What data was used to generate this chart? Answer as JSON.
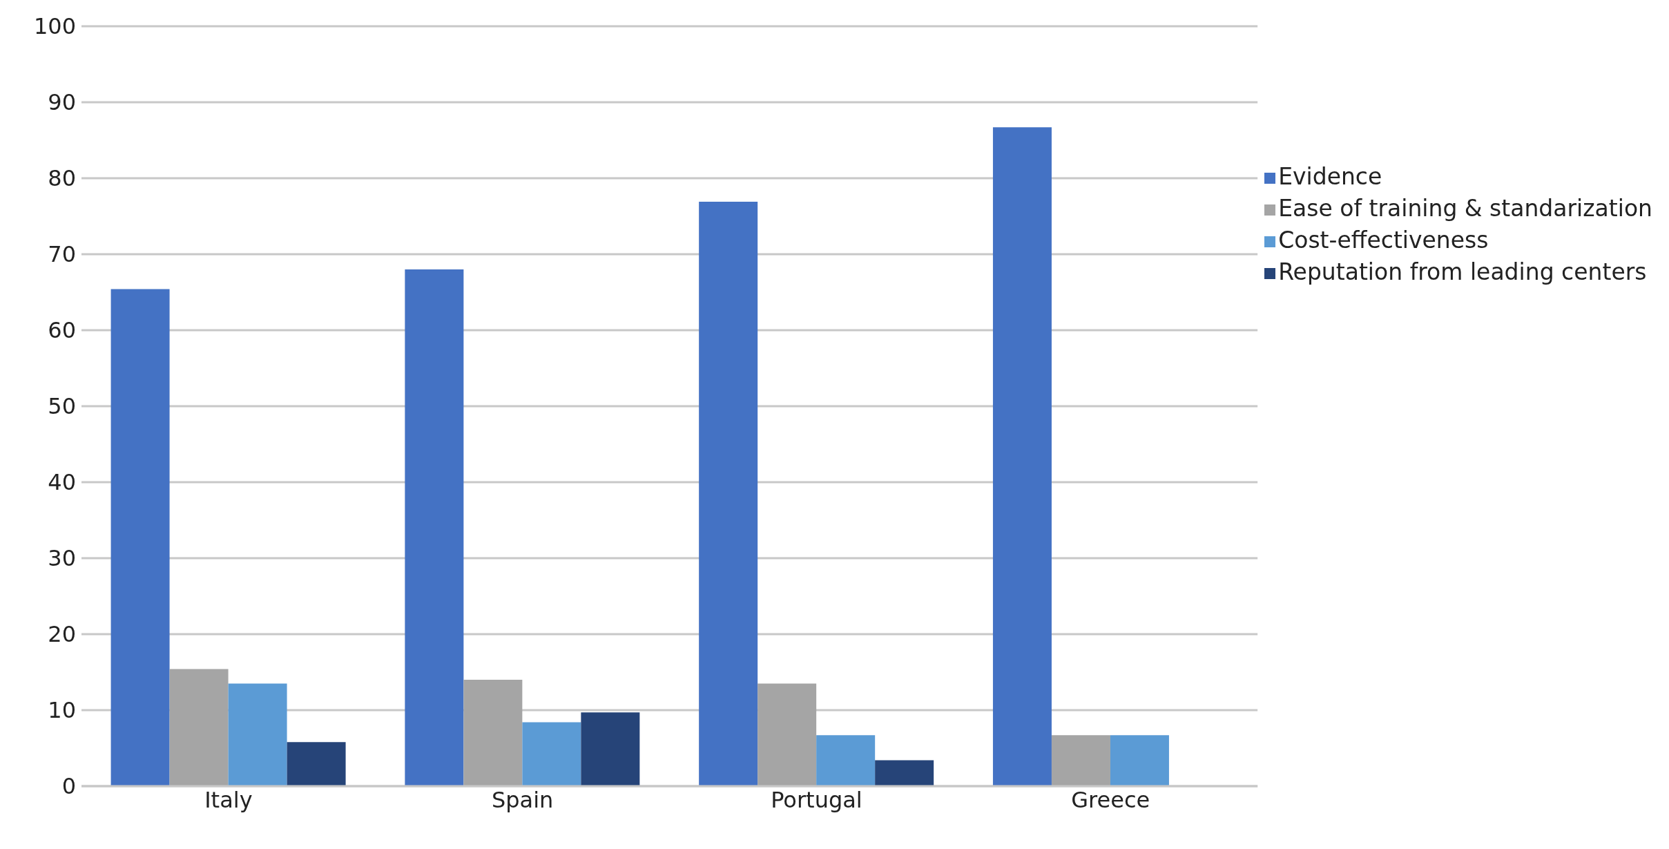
{
  "chart_data": {
    "type": "bar",
    "categories": [
      "Italy",
      "Spain",
      "Portugal",
      "Greece"
    ],
    "series": [
      {
        "name": "Evidence",
        "color": "#4472c4",
        "values": [
          65.4,
          68.0,
          76.9,
          86.7
        ]
      },
      {
        "name": "Ease of training & standarization",
        "color": "#a5a5a5",
        "values": [
          15.4,
          14.0,
          13.5,
          6.7
        ]
      },
      {
        "name": "Cost-effectiveness",
        "color": "#5b9bd5",
        "values": [
          13.5,
          8.4,
          6.7,
          6.7
        ]
      },
      {
        "name": "Reputation from leading centers",
        "color": "#264478",
        "values": [
          5.8,
          9.7,
          3.4,
          0
        ]
      }
    ],
    "ylim": [
      0,
      100
    ],
    "yticks": [
      0,
      10,
      20,
      30,
      40,
      50,
      60,
      70,
      80,
      90,
      100
    ],
    "grid": "y",
    "legend": "right"
  }
}
